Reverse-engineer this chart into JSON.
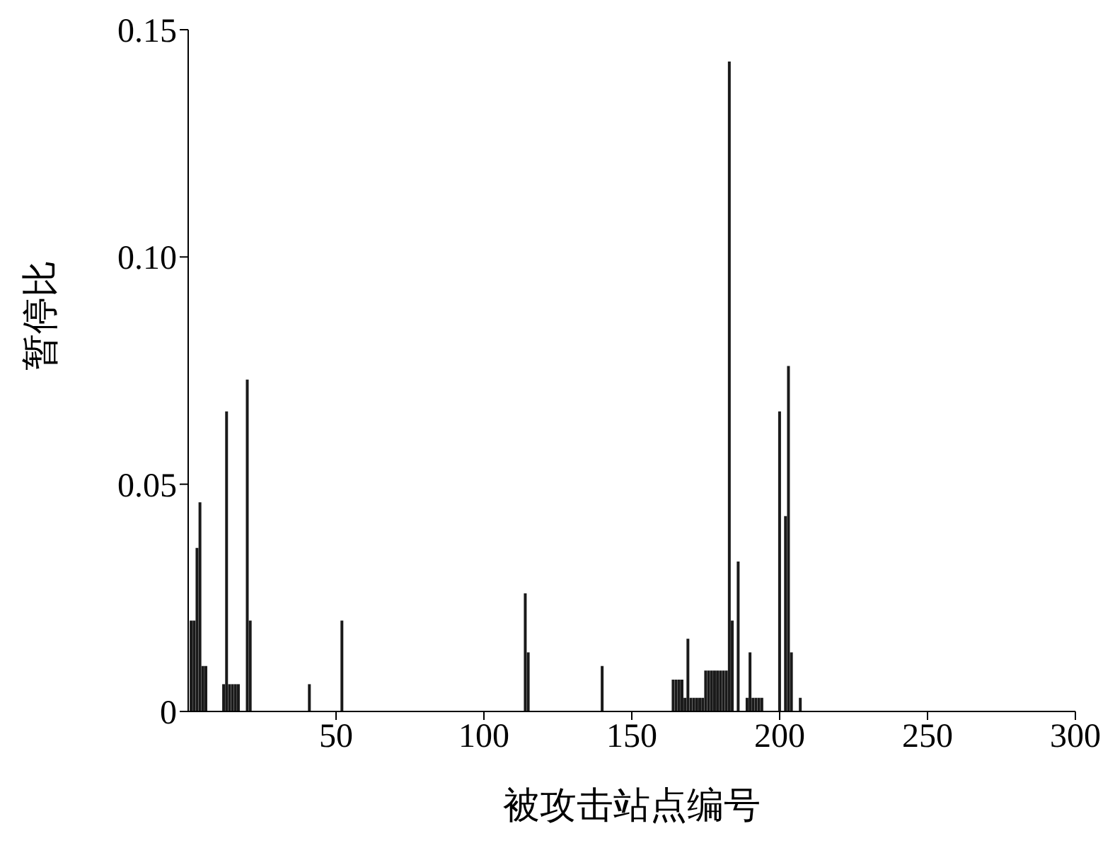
{
  "chart_data": {
    "type": "bar",
    "xlabel": "被攻击站点编号",
    "ylabel": "暂停比",
    "x": [
      1,
      2,
      3,
      4,
      5,
      6,
      12,
      13,
      14,
      15,
      16,
      17,
      20,
      21,
      41,
      52,
      114,
      115,
      140,
      164,
      165,
      166,
      167,
      168,
      169,
      170,
      171,
      172,
      173,
      174,
      175,
      176,
      177,
      178,
      179,
      180,
      181,
      182,
      183,
      184,
      186,
      189,
      190,
      191,
      192,
      193,
      194,
      200,
      202,
      203,
      204,
      207
    ],
    "values": [
      0.02,
      0.02,
      0.036,
      0.046,
      0.01,
      0.01,
      0.006,
      0.066,
      0.006,
      0.006,
      0.006,
      0.006,
      0.073,
      0.02,
      0.006,
      0.02,
      0.026,
      0.013,
      0.01,
      0.007,
      0.007,
      0.007,
      0.007,
      0.003,
      0.016,
      0.003,
      0.003,
      0.003,
      0.003,
      0.003,
      0.009,
      0.009,
      0.009,
      0.009,
      0.009,
      0.009,
      0.009,
      0.009,
      0.143,
      0.02,
      0.033,
      0.003,
      0.013,
      0.003,
      0.003,
      0.003,
      0.003,
      0.066,
      0.043,
      0.076,
      0.013,
      0.003
    ],
    "color": "#1a1a1a",
    "xlim": [
      0,
      300
    ],
    "xticks": [
      50,
      100,
      150,
      200,
      250,
      300
    ],
    "ylim": [
      0,
      0.15
    ],
    "yticks": [
      0,
      0.05,
      {
        "value": 0.1,
        "label": "0.10"
      },
      0.15
    ],
    "grid": false,
    "legend": false
  }
}
